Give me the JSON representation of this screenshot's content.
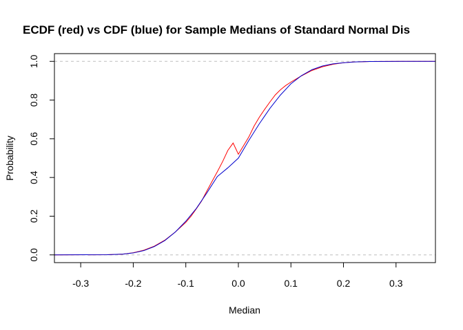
{
  "chart_data": {
    "type": "line",
    "title": "ECDF (red) vs CDF (blue) for Sample Medians of Standard Normal Dis",
    "xlabel": "Median",
    "ylabel": "Probability",
    "xlim": [
      -0.35,
      0.375
    ],
    "ylim": [
      -0.04,
      1.04
    ],
    "x_ticks": [
      -0.3,
      -0.2,
      -0.1,
      0.0,
      0.1,
      0.2,
      0.3
    ],
    "x_tick_labels": [
      "-0.3",
      "-0.2",
      "-0.1",
      "0.0",
      "0.1",
      "0.2",
      "0.3"
    ],
    "y_ticks": [
      0.0,
      0.2,
      0.4,
      0.6,
      0.8,
      1.0
    ],
    "y_tick_labels": [
      "0.0",
      "0.2",
      "0.4",
      "0.6",
      "0.8",
      "1.0"
    ],
    "reference_lines": [
      0,
      1
    ],
    "grid": false,
    "series": [
      {
        "color": "#ff0000",
        "x": [
          -0.35,
          -0.25,
          -0.22,
          -0.2,
          -0.18,
          -0.16,
          -0.14,
          -0.12,
          -0.1,
          -0.09,
          -0.08,
          -0.07,
          -0.06,
          -0.05,
          -0.04,
          -0.03,
          -0.02,
          -0.01,
          0.0,
          0.01,
          0.02,
          0.03,
          0.04,
          0.05,
          0.06,
          0.07,
          0.08,
          0.09,
          0.1,
          0.12,
          0.14,
          0.16,
          0.18,
          0.2,
          0.22,
          0.25,
          0.31,
          0.375
        ],
        "y": [
          0.0,
          0.001,
          0.004,
          0.011,
          0.024,
          0.045,
          0.076,
          0.118,
          0.168,
          0.2,
          0.238,
          0.278,
          0.33,
          0.38,
          0.43,
          0.482,
          0.54,
          0.578,
          0.52,
          0.565,
          0.61,
          0.666,
          0.712,
          0.752,
          0.79,
          0.826,
          0.853,
          0.875,
          0.893,
          0.925,
          0.953,
          0.972,
          0.985,
          0.993,
          0.997,
          0.999,
          1.0,
          1.0
        ]
      },
      {
        "color": "#0000cd",
        "x": [
          -0.35,
          -0.25,
          -0.22,
          -0.2,
          -0.18,
          -0.16,
          -0.14,
          -0.12,
          -0.1,
          -0.08,
          -0.06,
          -0.04,
          -0.02,
          0.0,
          0.02,
          0.04,
          0.06,
          0.08,
          0.1,
          0.12,
          0.14,
          0.16,
          0.18,
          0.2,
          0.22,
          0.25,
          0.31,
          0.375
        ],
        "y": [
          0.0,
          0.001,
          0.004,
          0.01,
          0.022,
          0.043,
          0.074,
          0.118,
          0.174,
          0.24,
          0.32,
          0.405,
          0.45,
          0.5,
          0.592,
          0.678,
          0.757,
          0.826,
          0.884,
          0.926,
          0.957,
          0.976,
          0.987,
          0.993,
          0.997,
          0.999,
          1.0,
          1.0
        ]
      }
    ]
  }
}
